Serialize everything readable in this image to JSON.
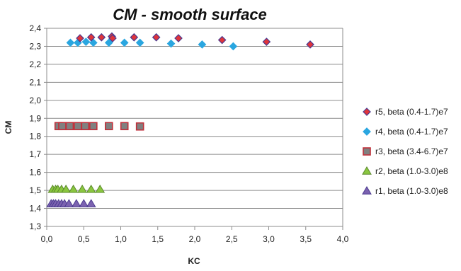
{
  "chart_data": {
    "type": "scatter",
    "title": "CM - smooth surface",
    "xlabel": "KC",
    "ylabel": "CM",
    "xlim": [
      0.0,
      4.0
    ],
    "ylim": [
      1.3,
      2.4
    ],
    "x_ticks": [
      "0,0",
      "0,5",
      "1,0",
      "1,5",
      "2,0",
      "2,5",
      "3,0",
      "3,5",
      "4,0"
    ],
    "y_ticks": [
      "1,3",
      "1,4",
      "1,5",
      "1,6",
      "1,7",
      "1,8",
      "1,9",
      "2,0",
      "2,1",
      "2,2",
      "2,3",
      "2,4"
    ],
    "grid": "horizontal",
    "legend_position": "right",
    "series": [
      {
        "name": "r5, beta (0.4-1.7)e7",
        "marker": "diamond",
        "color": "#e0343a",
        "stroke": "#4b3a8f",
        "points": [
          [
            0.45,
            2.345
          ],
          [
            0.6,
            2.35
          ],
          [
            0.74,
            2.35
          ],
          [
            0.88,
            2.355
          ],
          [
            1.18,
            2.35
          ],
          [
            1.48,
            2.35
          ],
          [
            1.78,
            2.345
          ],
          [
            2.37,
            2.335
          ],
          [
            2.97,
            2.325
          ],
          [
            3.56,
            2.31
          ],
          [
            0.89,
            2.345
          ]
        ]
      },
      {
        "name": "r4, beta (0.4-1.7)e7",
        "marker": "diamond",
        "color": "#2aa6e0",
        "stroke": "#2aa6e0",
        "points": [
          [
            0.32,
            2.32
          ],
          [
            0.42,
            2.32
          ],
          [
            0.53,
            2.325
          ],
          [
            0.63,
            2.32
          ],
          [
            0.84,
            2.32
          ],
          [
            1.05,
            2.32
          ],
          [
            1.26,
            2.32
          ],
          [
            1.68,
            2.315
          ],
          [
            2.1,
            2.31
          ],
          [
            2.52,
            2.3
          ]
        ]
      },
      {
        "name": "r3, beta (3.4-6.7)e7",
        "marker": "square",
        "color": "#808080",
        "stroke": "#c0303a",
        "points": [
          [
            0.16,
            1.857
          ],
          [
            0.21,
            1.857
          ],
          [
            0.31,
            1.857
          ],
          [
            0.42,
            1.857
          ],
          [
            0.52,
            1.857
          ],
          [
            0.63,
            1.857
          ],
          [
            0.84,
            1.857
          ],
          [
            1.05,
            1.857
          ],
          [
            1.26,
            1.855
          ]
        ]
      },
      {
        "name": "r2, beta (1.0-3.0)e8",
        "marker": "triangle",
        "color": "#8ac640",
        "stroke": "#5a8a2a",
        "points": [
          [
            0.08,
            1.505
          ],
          [
            0.12,
            1.505
          ],
          [
            0.15,
            1.505
          ],
          [
            0.2,
            1.505
          ],
          [
            0.26,
            1.505
          ],
          [
            0.36,
            1.505
          ],
          [
            0.48,
            1.505
          ],
          [
            0.6,
            1.505
          ],
          [
            0.72,
            1.505
          ]
        ]
      },
      {
        "name": "r1, beta (1.0-3.0)e8",
        "marker": "triangle",
        "color": "#7b62b0",
        "stroke": "#4b3a8f",
        "points": [
          [
            0.06,
            1.425
          ],
          [
            0.09,
            1.425
          ],
          [
            0.12,
            1.425
          ],
          [
            0.16,
            1.425
          ],
          [
            0.2,
            1.425
          ],
          [
            0.24,
            1.425
          ],
          [
            0.3,
            1.425
          ],
          [
            0.4,
            1.425
          ],
          [
            0.5,
            1.425
          ],
          [
            0.6,
            1.425
          ]
        ]
      }
    ]
  }
}
